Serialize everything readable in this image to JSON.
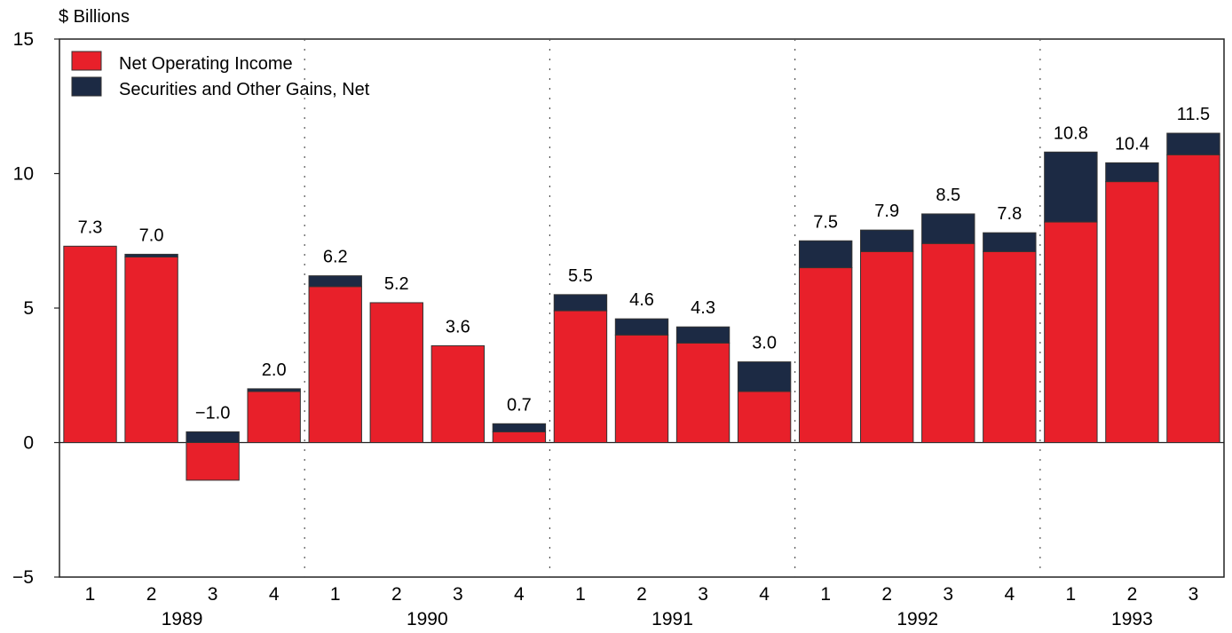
{
  "chart_data": {
    "type": "bar",
    "stacked": true,
    "ylabel": "$ Billions",
    "ylim": [
      -5,
      15
    ],
    "yticks": [
      15,
      10,
      5,
      0,
      -5
    ],
    "grid": "dotted vertical lines between years",
    "legend_position": "top-left",
    "categories": [
      "1",
      "2",
      "3",
      "4",
      "1",
      "2",
      "3",
      "4",
      "1",
      "2",
      "3",
      "4",
      "1",
      "2",
      "3",
      "4",
      "1",
      "2",
      "3"
    ],
    "groups": [
      {
        "label": "1989",
        "count": 4
      },
      {
        "label": "1990",
        "count": 4
      },
      {
        "label": "1991",
        "count": 4
      },
      {
        "label": "1992",
        "count": 4
      },
      {
        "label": "1993",
        "count": 3
      }
    ],
    "series": [
      {
        "name": "Net Operating Income",
        "color": "#e8202a",
        "values": [
          7.3,
          6.9,
          -1.4,
          1.9,
          5.8,
          5.2,
          3.6,
          0.4,
          4.9,
          4.0,
          3.7,
          1.9,
          6.5,
          7.1,
          7.4,
          7.1,
          8.2,
          9.7,
          10.7
        ]
      },
      {
        "name": "Securities and Other Gains, Net",
        "color": "#1c2a44",
        "values": [
          0.0,
          0.1,
          0.4,
          0.1,
          0.4,
          0.0,
          0.0,
          0.3,
          0.6,
          0.6,
          0.6,
          1.1,
          1.0,
          0.8,
          1.1,
          0.7,
          2.6,
          0.7,
          0.8
        ]
      }
    ],
    "totals": [
      "7.3",
      "7.0",
      "−1.0",
      "2.0",
      "6.2",
      "5.2",
      "3.6",
      "0.7",
      "5.5",
      "4.6",
      "4.3",
      "3.0",
      "7.5",
      "7.9",
      "8.5",
      "7.8",
      "10.8",
      "10.4",
      "11.5"
    ]
  }
}
